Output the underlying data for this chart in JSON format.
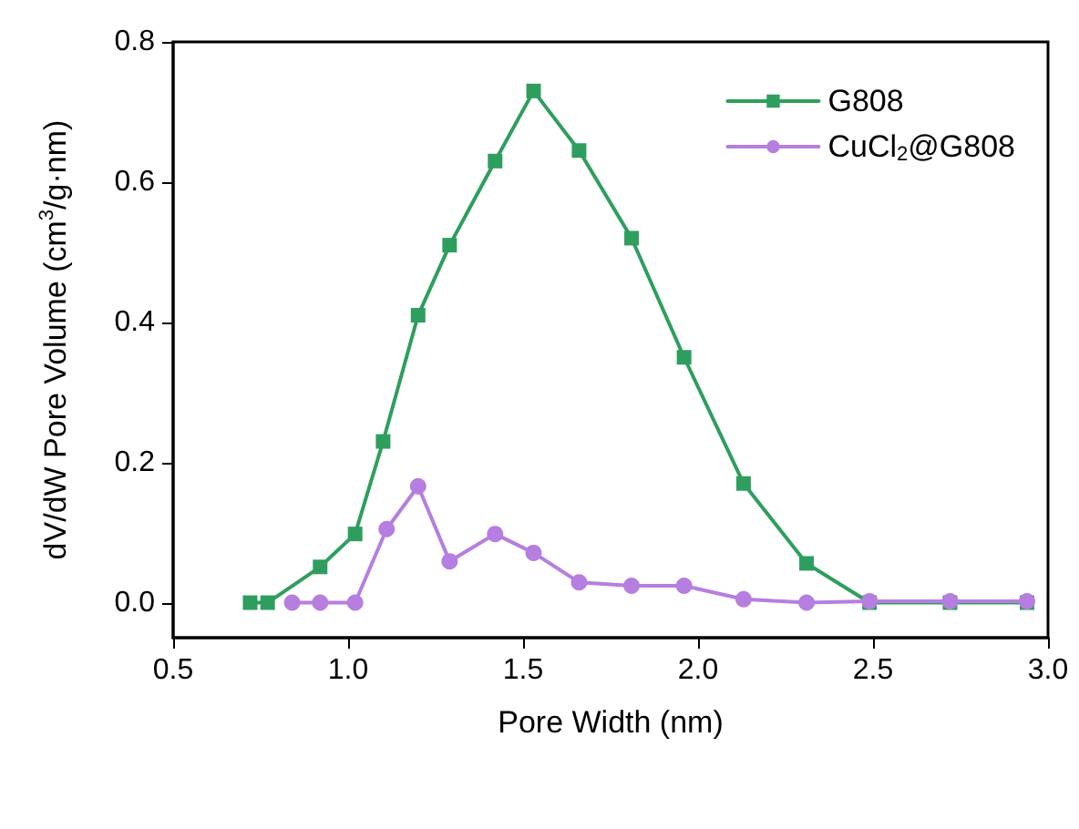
{
  "chart_data": {
    "type": "line",
    "xlabel": "Pore Width (nm)",
    "ylabel": "dV/dW Pore Volume (cm$^{3}$/g·nm)",
    "xlim": [
      0.5,
      3.0
    ],
    "xticks": [
      {
        "value": 0.5,
        "label": "0.5"
      },
      {
        "value": 1,
        "label": "1.0"
      },
      {
        "value": 1.5,
        "label": "1.5"
      },
      {
        "value": 2,
        "label": "2.0"
      },
      {
        "value": 2.5,
        "label": "2.5"
      },
      {
        "value": 3,
        "label": "3.0"
      }
    ],
    "ylim": [
      -0.05,
      0.8
    ],
    "yticks": [
      {
        "value": 0,
        "label": "0.0"
      },
      0.2,
      0.4,
      0.6,
      0.8
    ],
    "legend": "top right",
    "grid": false,
    "line_style": "solid",
    "series": [
      {
        "name": "G808",
        "color": "#2e9e5e",
        "marker": "square",
        "x": [
          0.72,
          0.77,
          0.92,
          1.02,
          1.1,
          1.2,
          1.29,
          1.42,
          1.53,
          1.66,
          1.81,
          1.96,
          2.13,
          2.31,
          2.49,
          2.72,
          2.94
        ],
        "values": [
          0,
          0,
          0.051,
          0.098,
          0.23,
          0.41,
          0.51,
          0.63,
          0.73,
          0.645,
          0.52,
          0.35,
          0.17,
          0.056,
          0,
          0,
          0
        ]
      },
      {
        "name": "CuCl$_{2}$@G808",
        "color": "#b57ee0",
        "marker": "circle",
        "x": [
          0.84,
          0.92,
          1.02,
          1.11,
          1.2,
          1.29,
          1.42,
          1.53,
          1.66,
          1.81,
          1.96,
          2.13,
          2.31,
          2.49,
          2.72,
          2.94
        ],
        "values": [
          0,
          0,
          0,
          0.105,
          0.166,
          0.059,
          0.098,
          0.071,
          0.029,
          0.024,
          0.024,
          0.005,
          0,
          0.002,
          0.002,
          0.002
        ]
      }
    ]
  }
}
